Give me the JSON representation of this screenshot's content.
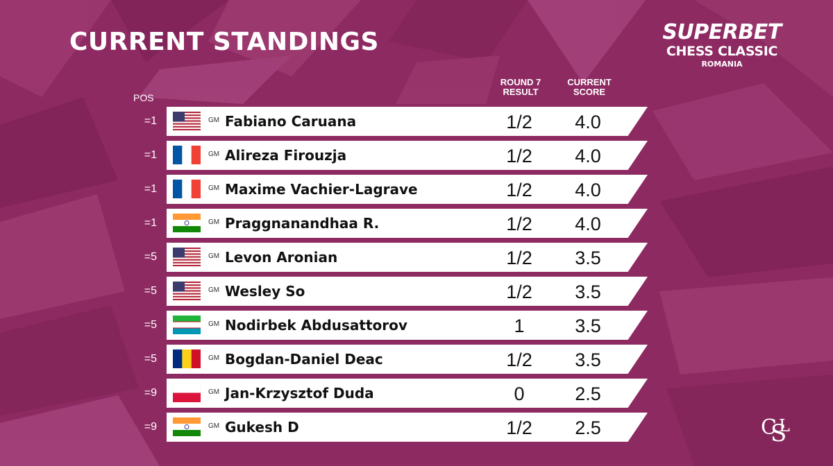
{
  "header": {
    "title": "CURRENT STANDINGS",
    "col_pos": "POS",
    "col_round_line1": "ROUND 7",
    "col_round_line2": "RESULT",
    "col_score_line1": "CURRENT",
    "col_score_line2": "SCORE"
  },
  "logo": {
    "line1": "SUPERBET",
    "line2": "CHESS CLASSIC",
    "line3": "ROMANIA",
    "corner_mark": "SCL"
  },
  "colors": {
    "background": "#8e2a62",
    "row_background": "#ffffff",
    "text_dark": "#111111"
  },
  "standings": [
    {
      "pos": "=1",
      "flag": "usa",
      "title": "GM",
      "name": "Fabiano Caruana",
      "result": "1/2",
      "score": "4.0"
    },
    {
      "pos": "=1",
      "flag": "france",
      "title": "GM",
      "name": "Alireza Firouzja",
      "result": "1/2",
      "score": "4.0"
    },
    {
      "pos": "=1",
      "flag": "france",
      "title": "GM",
      "name": "Maxime Vachier-Lagrave",
      "result": "1/2",
      "score": "4.0"
    },
    {
      "pos": "=1",
      "flag": "india",
      "title": "GM",
      "name": "Praggnanandhaa R.",
      "result": "1/2",
      "score": "4.0"
    },
    {
      "pos": "=5",
      "flag": "usa",
      "title": "GM",
      "name": "Levon Aronian",
      "result": "1/2",
      "score": "3.5"
    },
    {
      "pos": "=5",
      "flag": "usa",
      "title": "GM",
      "name": "Wesley So",
      "result": "1/2",
      "score": "3.5"
    },
    {
      "pos": "=5",
      "flag": "uzbekistan",
      "title": "GM",
      "name": "Nodirbek Abdusattorov",
      "result": "1",
      "score": "3.5"
    },
    {
      "pos": "=5",
      "flag": "romania",
      "title": "GM",
      "name": "Bogdan-Daniel Deac",
      "result": "1/2",
      "score": "3.5"
    },
    {
      "pos": "=9",
      "flag": "poland",
      "title": "GM",
      "name": "Jan-Krzysztof Duda",
      "result": "0",
      "score": "2.5"
    },
    {
      "pos": "=9",
      "flag": "india",
      "title": "GM",
      "name": "Gukesh D",
      "result": "1/2",
      "score": "2.5"
    }
  ]
}
